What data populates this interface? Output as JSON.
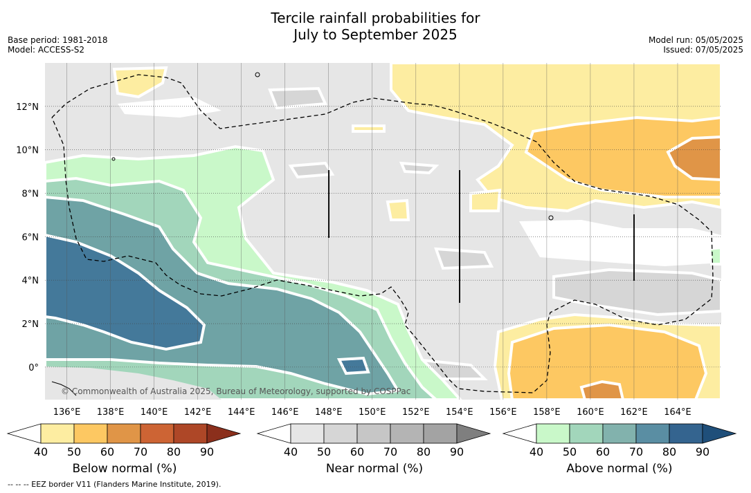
{
  "title_line1": "Tercile rainfall probabilities for",
  "title_line2": "July to September 2025",
  "base_period": "Base period: 1981-2018",
  "model": "Model: ACCESS-S2",
  "model_run": "Model run: 05/05/2025",
  "issued": "Issued: 07/05/2025",
  "copyright": "© Commonwealth of Australia 2025, Bureau of Meteorology, supported by COSPPac",
  "footer": "-- -- -- EEZ border V11 (Flanders Marine Institute, 2019).",
  "lon_labels": [
    "136°E",
    "138°E",
    "140°E",
    "142°E",
    "144°E",
    "146°E",
    "148°E",
    "150°E",
    "152°E",
    "154°E",
    "156°E",
    "158°E",
    "160°E",
    "162°E",
    "164°E"
  ],
  "lat_labels": [
    "12°N",
    "10°N",
    "8°N",
    "6°N",
    "4°N",
    "2°N",
    "0°"
  ],
  "map_extent": {
    "lon_min": 135.0,
    "lon_max": 166.0,
    "lat_min": -1.5,
    "lat_max": 14.0
  },
  "colorbars": [
    {
      "title": "Below normal (%)",
      "ticks": [
        "40",
        "50",
        "60",
        "70",
        "80",
        "90"
      ],
      "colors": [
        "#ffffff",
        "#fdeda1",
        "#fdc862",
        "#e09547",
        "#cd6434",
        "#ae4727",
        "#8b2f1c"
      ]
    },
    {
      "title": "Near normal (%)",
      "ticks": [
        "40",
        "50",
        "60",
        "70",
        "80",
        "90"
      ],
      "colors": [
        "#ffffff",
        "#e6e6e6",
        "#d6d6d6",
        "#c6c6c6",
        "#b4b4b4",
        "#a3a3a3",
        "#7f7f7f"
      ]
    },
    {
      "title": "Above normal (%)",
      "ticks": [
        "40",
        "50",
        "60",
        "70",
        "80",
        "90"
      ],
      "colors": [
        "#ffffff",
        "#c9f8c9",
        "#a2d6bb",
        "#82b2ad",
        "#5a8ea3",
        "#34648f",
        "#1f4f7a"
      ]
    }
  ],
  "region_colors": {
    "near40": "#e6e6e6",
    "near50": "#d6d6d6",
    "below40": "#fdeda1",
    "below50": "#fdc862",
    "below60": "#e09547",
    "above40": "#c9f8c9",
    "above50": "#a2d6bb",
    "above60": "#6fa3a5",
    "above70": "#44799a"
  }
}
